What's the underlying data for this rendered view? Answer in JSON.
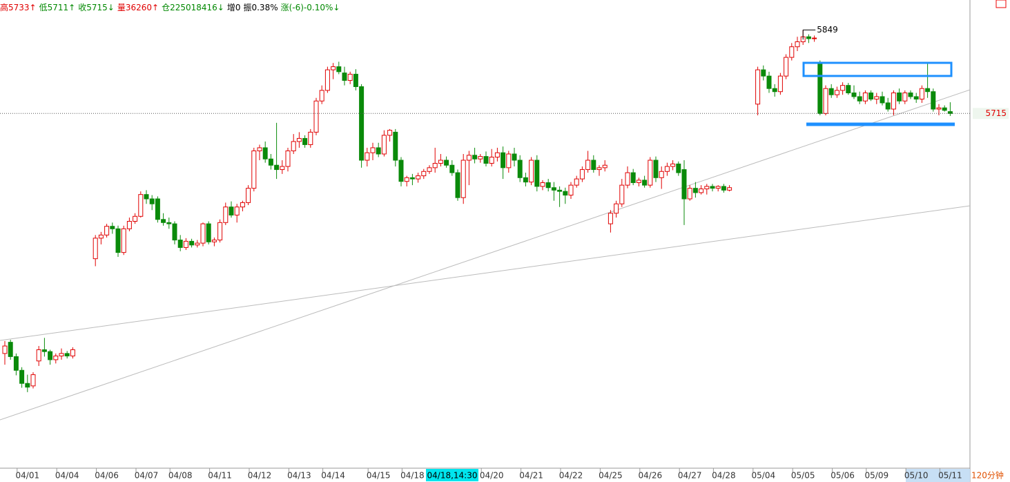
{
  "chart_data": {
    "type": "candlestick",
    "header": [
      {
        "text": "高5733↑",
        "color": "#e00000"
      },
      {
        "text": "低5711↑",
        "color": "#008800"
      },
      {
        "text": "收5715↓",
        "color": "#008800"
      },
      {
        "text": "量36260↑",
        "color": "#e00000"
      },
      {
        "text": "仓225018416↓",
        "color": "#008800"
      },
      {
        "text": "增0",
        "color": "#000000"
      },
      {
        "text": "振0.38%",
        "color": "#000000"
      },
      {
        "text": "涨(-6)-0.10%↓",
        "color": "#008800"
      }
    ],
    "period": "120分钟",
    "cursor_label": "04/18,14:30",
    "high_label": 5849,
    "last_price": 5715,
    "up_color": "#e00000",
    "down_color": "#0a8a0a",
    "ylim": [
      5146,
      5897
    ],
    "categories": [
      null,
      null,
      null,
      null,
      "04/01",
      null,
      null,
      null,
      null,
      null,
      null,
      "04/04",
      null,
      null,
      null,
      null,
      null,
      null,
      "04/06",
      null,
      null,
      null,
      null,
      null,
      null,
      "04/07",
      null,
      null,
      null,
      null,
      null,
      "04/08",
      null,
      null,
      null,
      null,
      null,
      null,
      "04/11",
      null,
      null,
      null,
      null,
      null,
      null,
      "04/12",
      null,
      null,
      null,
      null,
      null,
      null,
      "04/13",
      null,
      null,
      null,
      null,
      null,
      "04/14",
      null,
      null,
      null,
      null,
      null,
      null,
      null,
      "04/15",
      null,
      null,
      null,
      null,
      null,
      "04/18",
      null,
      null,
      null,
      null,
      null,
      null,
      null,
      null,
      null,
      null,
      null,
      null,
      null,
      "04/20",
      null,
      null,
      null,
      null,
      null,
      null,
      "04/21",
      null,
      null,
      null,
      null,
      null,
      null,
      "04/22",
      null,
      null,
      null,
      null,
      null,
      null,
      "04/25",
      null,
      null,
      null,
      null,
      null,
      null,
      "04/26",
      null,
      null,
      null,
      null,
      null,
      null,
      "04/27",
      null,
      null,
      null,
      null,
      null,
      "04/28",
      null,
      null,
      null,
      null,
      null,
      null,
      "05/04",
      null,
      null,
      null,
      null,
      null,
      null,
      "05/05",
      null,
      null,
      null,
      null,
      null,
      null,
      "05/06",
      null,
      null,
      null,
      null,
      null,
      "05/09",
      null,
      null,
      null,
      null,
      null,
      null,
      "05/10",
      null,
      null,
      null,
      null,
      null,
      "05/11"
    ],
    "candles": [
      [
        5330,
        5350,
        5312,
        5342
      ],
      [
        5348,
        5352,
        5320,
        5325
      ],
      [
        5325,
        5330,
        5295,
        5303
      ],
      [
        5303,
        5308,
        5275,
        5282
      ],
      [
        5282,
        5296,
        5268,
        5276
      ],
      [
        5278,
        5300,
        5274,
        5296
      ],
      [
        5318,
        5342,
        5310,
        5336
      ],
      [
        5336,
        5355,
        5325,
        5333
      ],
      [
        5333,
        5336,
        5312,
        5320
      ],
      [
        5320,
        5330,
        5314,
        5326
      ],
      [
        5326,
        5338,
        5320,
        5330
      ],
      [
        5330,
        5334,
        5322,
        5326
      ],
      [
        5326,
        5340,
        5322,
        5336
      ],
      null,
      null,
      null,
      [
        5482,
        5520,
        5470,
        5515
      ],
      [
        5515,
        5525,
        5505,
        5520
      ],
      [
        5520,
        5538,
        5516,
        5534
      ],
      [
        5534,
        5540,
        5522,
        5530
      ],
      [
        5530,
        5535,
        5485,
        5492
      ],
      [
        5492,
        5535,
        5488,
        5530
      ],
      [
        5530,
        5548,
        5526,
        5542
      ],
      [
        5542,
        5555,
        5538,
        5550
      ],
      [
        5550,
        5590,
        5548,
        5585
      ],
      [
        5585,
        5592,
        5570,
        5578
      ],
      [
        5578,
        5584,
        5560,
        5570
      ],
      [
        5578,
        5582,
        5540,
        5545
      ],
      [
        5545,
        5555,
        5535,
        5540
      ],
      [
        5540,
        5548,
        5530,
        5538
      ],
      [
        5538,
        5542,
        5505,
        5512
      ],
      [
        5512,
        5520,
        5494,
        5500
      ],
      [
        5500,
        5515,
        5496,
        5510
      ],
      [
        5510,
        5514,
        5500,
        5504
      ],
      [
        5504,
        5512,
        5500,
        5507
      ],
      [
        5507,
        5540,
        5502,
        5538
      ],
      [
        5538,
        5542,
        5505,
        5509
      ],
      [
        5509,
        5516,
        5502,
        5512
      ],
      [
        5512,
        5545,
        5508,
        5540
      ],
      [
        5540,
        5572,
        5536,
        5565
      ],
      [
        5565,
        5574,
        5548,
        5552
      ],
      [
        5552,
        5570,
        5540,
        5565
      ],
      [
        5565,
        5575,
        5558,
        5572
      ],
      [
        5572,
        5600,
        5568,
        5595
      ],
      [
        5595,
        5660,
        5590,
        5655
      ],
      [
        5655,
        5665,
        5640,
        5660
      ],
      [
        5660,
        5670,
        5636,
        5642
      ],
      [
        5642,
        5650,
        5625,
        5632
      ],
      [
        5632,
        5700,
        5610,
        5625
      ],
      [
        5625,
        5640,
        5618,
        5630
      ],
      [
        5630,
        5660,
        5622,
        5655
      ],
      [
        5655,
        5682,
        5650,
        5670
      ],
      [
        5670,
        5685,
        5660,
        5675
      ],
      [
        5675,
        5680,
        5660,
        5665
      ],
      [
        5665,
        5690,
        5660,
        5685
      ],
      [
        5685,
        5740,
        5680,
        5735
      ],
      [
        5735,
        5760,
        5730,
        5752
      ],
      [
        5752,
        5790,
        5748,
        5785
      ],
      [
        5785,
        5796,
        5770,
        5790
      ],
      [
        5790,
        5798,
        5778,
        5782
      ],
      [
        5780,
        5790,
        5760,
        5768
      ],
      [
        5768,
        5782,
        5762,
        5778
      ],
      [
        5778,
        5786,
        5752,
        5758
      ],
      [
        5758,
        5762,
        5628,
        5640
      ],
      [
        5640,
        5660,
        5630,
        5652
      ],
      [
        5652,
        5668,
        5640,
        5660
      ],
      [
        5660,
        5668,
        5645,
        5650
      ],
      [
        5650,
        5688,
        5646,
        5680
      ],
      [
        5680,
        5690,
        5670,
        5688
      ],
      [
        5685,
        5690,
        5630,
        5640
      ],
      [
        5640,
        5645,
        5598,
        5606
      ],
      [
        5606,
        5615,
        5598,
        5612
      ],
      [
        5612,
        5618,
        5600,
        5610
      ],
      [
        5610,
        5620,
        5604,
        5615
      ],
      [
        5615,
        5626,
        5610,
        5622
      ],
      [
        5622,
        5632,
        5618,
        5628
      ],
      [
        5628,
        5660,
        5620,
        5635
      ],
      [
        5635,
        5650,
        5630,
        5640
      ],
      [
        5640,
        5646,
        5628,
        5632
      ],
      [
        5632,
        5640,
        5615,
        5620
      ],
      [
        5620,
        5625,
        5575,
        5580
      ],
      [
        5580,
        5650,
        5570,
        5640
      ],
      [
        5640,
        5655,
        5600,
        5648
      ],
      [
        5648,
        5660,
        5635,
        5642
      ],
      [
        5642,
        5650,
        5636,
        5646
      ],
      [
        5646,
        5654,
        5630,
        5635
      ],
      [
        5635,
        5658,
        5630,
        5645
      ],
      [
        5645,
        5660,
        5638,
        5652
      ],
      [
        5652,
        5662,
        5610,
        5628
      ],
      [
        5628,
        5655,
        5620,
        5650
      ],
      [
        5650,
        5660,
        5630,
        5640
      ],
      [
        5640,
        5648,
        5605,
        5612
      ],
      [
        5612,
        5620,
        5598,
        5605
      ],
      [
        5605,
        5645,
        5600,
        5640
      ],
      [
        5640,
        5648,
        5590,
        5598
      ],
      [
        5598,
        5608,
        5592,
        5604
      ],
      [
        5604,
        5610,
        5590,
        5596
      ],
      [
        5596,
        5605,
        5575,
        5592
      ],
      [
        5592,
        5598,
        5565,
        5590
      ],
      [
        5590,
        5596,
        5570,
        5584
      ],
      [
        5584,
        5605,
        5578,
        5600
      ],
      [
        5600,
        5615,
        5596,
        5610
      ],
      [
        5610,
        5630,
        5605,
        5625
      ],
      [
        5625,
        5655,
        5620,
        5640
      ],
      [
        5640,
        5648,
        5620,
        5625
      ],
      [
        5625,
        5632,
        5615,
        5628
      ],
      [
        5628,
        5640,
        5622,
        5632
      ],
      [
        5538,
        5560,
        5524,
        5555
      ],
      [
        5555,
        5575,
        5548,
        5570
      ],
      [
        5570,
        5610,
        5565,
        5600
      ],
      [
        5600,
        5630,
        5595,
        5620
      ],
      [
        5620,
        5626,
        5600,
        5604
      ],
      [
        5604,
        5612,
        5598,
        5608
      ],
      [
        5608,
        5615,
        5596,
        5600
      ],
      [
        5600,
        5645,
        5596,
        5640
      ],
      [
        5640,
        5646,
        5605,
        5612
      ],
      [
        5612,
        5630,
        5594,
        5622
      ],
      [
        5622,
        5636,
        5615,
        5630
      ],
      [
        5630,
        5640,
        5624,
        5634
      ],
      [
        5634,
        5638,
        5615,
        5620
      ],
      [
        5625,
        5640,
        5536,
        5578
      ],
      [
        5578,
        5600,
        5575,
        5595
      ],
      [
        5595,
        5605,
        5580,
        5588
      ],
      [
        5588,
        5600,
        5585,
        5594
      ],
      [
        5594,
        5602,
        5585,
        5598
      ],
      [
        5598,
        5602,
        5590,
        5595
      ],
      [
        5595,
        5600,
        5590,
        5598
      ],
      [
        5598,
        5602,
        5588,
        5592
      ],
      [
        5592,
        5600,
        5590,
        5596
      ],
      null,
      null,
      null,
      null,
      [
        5730,
        5790,
        5712,
        5785
      ],
      [
        5785,
        5792,
        5768,
        5775
      ],
      [
        5775,
        5782,
        5748,
        5755
      ],
      [
        5755,
        5762,
        5742,
        5750
      ],
      [
        5750,
        5780,
        5745,
        5775
      ],
      [
        5775,
        5810,
        5770,
        5805
      ],
      [
        5805,
        5828,
        5800,
        5822
      ],
      [
        5822,
        5838,
        5815,
        5830
      ],
      [
        5830,
        5849,
        5825,
        5838
      ],
      [
        5838,
        5842,
        5828,
        5835
      ],
      [
        5835,
        5840,
        5830,
        5836
      ],
      [
        5797,
        5800,
        5712,
        5715
      ],
      [
        5715,
        5760,
        5712,
        5755
      ],
      [
        5755,
        5762,
        5740,
        5745
      ],
      [
        5745,
        5758,
        5740,
        5752
      ],
      [
        5752,
        5765,
        5745,
        5760
      ],
      [
        5760,
        5764,
        5745,
        5748
      ],
      [
        5748,
        5760,
        5738,
        5742
      ],
      [
        5742,
        5750,
        5730,
        5735
      ],
      [
        5735,
        5752,
        5730,
        5748
      ],
      [
        5748,
        5752,
        5735,
        5738
      ],
      [
        5738,
        5748,
        5730,
        5742
      ],
      [
        5742,
        5750,
        5728,
        5732
      ],
      [
        5732,
        5740,
        5718,
        5722
      ],
      [
        5722,
        5752,
        5712,
        5748
      ],
      [
        5748,
        5755,
        5730,
        5735
      ],
      [
        5735,
        5752,
        5730,
        5748
      ],
      [
        5748,
        5752,
        5738,
        5742
      ],
      [
        5742,
        5748,
        5732,
        5738
      ],
      [
        5738,
        5760,
        5732,
        5755
      ],
      [
        5755,
        5797,
        5740,
        5750
      ],
      [
        5750,
        5755,
        5718,
        5722
      ],
      [
        5722,
        5730,
        5712,
        5724
      ],
      [
        5724,
        5728,
        5718,
        5720
      ],
      [
        5718,
        5733,
        5711,
        5715
      ]
    ]
  }
}
